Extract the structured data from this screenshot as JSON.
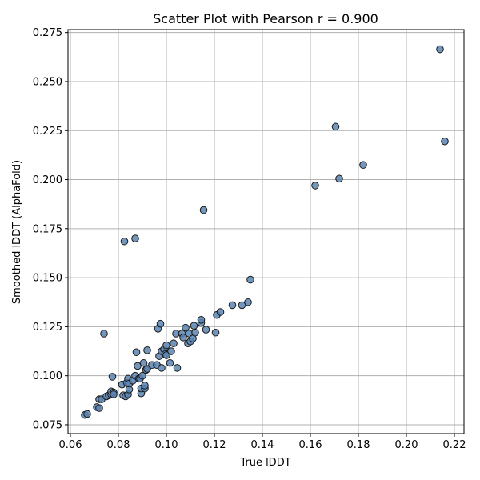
{
  "chart_data": {
    "type": "scatter",
    "title": "Scatter Plot with Pearson r = 0.900",
    "xlabel": "True lDDT",
    "ylabel": "Smoothed lDDT (AlphaFold)",
    "xlim": [
      0.059,
      0.224
    ],
    "ylim": [
      0.0705,
      0.2765
    ],
    "xticks": [
      0.06,
      0.08,
      0.1,
      0.12,
      0.14,
      0.16,
      0.18,
      0.2,
      0.22
    ],
    "yticks": [
      0.075,
      0.1,
      0.125,
      0.15,
      0.175,
      0.2,
      0.225,
      0.25,
      0.275
    ],
    "grid": true,
    "marker_color": "#5b84b1",
    "marker_edge_color": "#1a1a1a",
    "points": [
      [
        0.066,
        0.08
      ],
      [
        0.067,
        0.0805
      ],
      [
        0.071,
        0.084
      ],
      [
        0.072,
        0.0835
      ],
      [
        0.072,
        0.088
      ],
      [
        0.073,
        0.088
      ],
      [
        0.074,
        0.1215
      ],
      [
        0.075,
        0.0895
      ],
      [
        0.076,
        0.09
      ],
      [
        0.077,
        0.0905
      ],
      [
        0.077,
        0.092
      ],
      [
        0.0775,
        0.0995
      ],
      [
        0.078,
        0.0915
      ],
      [
        0.078,
        0.0905
      ],
      [
        0.0815,
        0.0955
      ],
      [
        0.082,
        0.09
      ],
      [
        0.0825,
        0.1685
      ],
      [
        0.083,
        0.0895
      ],
      [
        0.0835,
        0.0965
      ],
      [
        0.084,
        0.0905
      ],
      [
        0.084,
        0.0985
      ],
      [
        0.0845,
        0.093
      ],
      [
        0.0845,
        0.096
      ],
      [
        0.086,
        0.0975
      ],
      [
        0.087,
        0.1
      ],
      [
        0.087,
        0.17
      ],
      [
        0.0875,
        0.112
      ],
      [
        0.088,
        0.105
      ],
      [
        0.0885,
        0.0985
      ],
      [
        0.089,
        0.0985
      ],
      [
        0.0895,
        0.091
      ],
      [
        0.0895,
        0.0935
      ],
      [
        0.09,
        0.1
      ],
      [
        0.0905,
        0.1065
      ],
      [
        0.091,
        0.0935
      ],
      [
        0.091,
        0.095
      ],
      [
        0.0915,
        0.103
      ],
      [
        0.092,
        0.1035
      ],
      [
        0.092,
        0.113
      ],
      [
        0.094,
        0.1055
      ],
      [
        0.096,
        0.1055
      ],
      [
        0.0965,
        0.124
      ],
      [
        0.097,
        0.11
      ],
      [
        0.0975,
        0.1265
      ],
      [
        0.098,
        0.1125
      ],
      [
        0.098,
        0.104
      ],
      [
        0.099,
        0.1135
      ],
      [
        0.0995,
        0.111
      ],
      [
        0.1,
        0.1155
      ],
      [
        0.1,
        0.1105
      ],
      [
        0.1015,
        0.1065
      ],
      [
        0.102,
        0.1125
      ],
      [
        0.103,
        0.1165
      ],
      [
        0.104,
        0.1215
      ],
      [
        0.1045,
        0.104
      ],
      [
        0.1065,
        0.1215
      ],
      [
        0.107,
        0.1195
      ],
      [
        0.108,
        0.1245
      ],
      [
        0.109,
        0.1165
      ],
      [
        0.1095,
        0.1215
      ],
      [
        0.11,
        0.1175
      ],
      [
        0.111,
        0.119
      ],
      [
        0.1115,
        0.1255
      ],
      [
        0.112,
        0.122
      ],
      [
        0.1145,
        0.127
      ],
      [
        0.1145,
        0.1285
      ],
      [
        0.1155,
        0.1845
      ],
      [
        0.1165,
        0.1235
      ],
      [
        0.1205,
        0.122
      ],
      [
        0.121,
        0.131
      ],
      [
        0.1225,
        0.1325
      ],
      [
        0.1275,
        0.136
      ],
      [
        0.1315,
        0.136
      ],
      [
        0.134,
        0.1375
      ],
      [
        0.135,
        0.149
      ],
      [
        0.162,
        0.197
      ],
      [
        0.1705,
        0.227
      ],
      [
        0.172,
        0.2005
      ],
      [
        0.182,
        0.2075
      ],
      [
        0.214,
        0.2665
      ],
      [
        0.216,
        0.2195
      ]
    ]
  }
}
